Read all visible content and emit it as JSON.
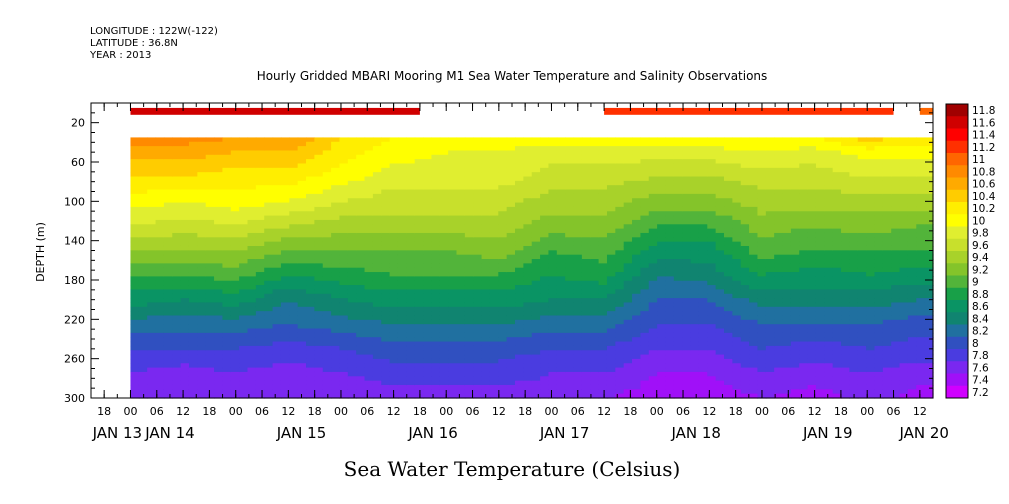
{
  "header": {
    "longitude_label": "LONGITUDE : 122W(-122)",
    "latitude_label": "LATITUDE : 36.8N",
    "year_label": "YEAR : 2013"
  },
  "chart_data": {
    "type": "heatmap",
    "title": "Hourly Gridded MBARI Mooring M1 Sea Water Temperature and Salinity Observations",
    "xlabel": "Sea Water Temperature (Celsius)",
    "ylabel": "DEPTH (m)",
    "x_unit": "hours since JAN 13 00:00 (2013)",
    "x_range_hours": [
      -9,
      183
    ],
    "y_range": [
      0,
      300
    ],
    "y_axis_inverted": true,
    "y_ticks": [
      20,
      60,
      100,
      140,
      180,
      220,
      260,
      300
    ],
    "x_hour_tick_labels": [
      "18",
      "00",
      "06",
      "12",
      "18",
      "00",
      "06",
      "12",
      "18",
      "00",
      "06",
      "12",
      "18",
      "00",
      "06",
      "12",
      "18",
      "00",
      "06",
      "12",
      "18",
      "00",
      "06",
      "12",
      "18",
      "00",
      "06",
      "12",
      "18",
      "00",
      "06",
      "12"
    ],
    "x_hour_tick_hours": [
      -6,
      0,
      6,
      12,
      18,
      24,
      30,
      36,
      42,
      48,
      54,
      60,
      66,
      72,
      78,
      84,
      90,
      96,
      102,
      108,
      114,
      120,
      126,
      132,
      138,
      144,
      150,
      156,
      162,
      168,
      174,
      180
    ],
    "x_day_labels": [
      {
        "label": "JAN 13",
        "hour": -3
      },
      {
        "label": "JAN 14",
        "hour": 9
      },
      {
        "label": "JAN 15",
        "hour": 39
      },
      {
        "label": "JAN 16",
        "hour": 69
      },
      {
        "label": "JAN 17",
        "hour": 99
      },
      {
        "label": "JAN 18",
        "hour": 129
      },
      {
        "label": "JAN 19",
        "hour": 159
      },
      {
        "label": "JAN 20",
        "hour": 181
      }
    ],
    "colorbar_levels": [
      "11.8",
      "11.6",
      "11.4",
      "11.2",
      "11",
      "10.8",
      "10.6",
      "10.4",
      "10.2",
      "10",
      "9.8",
      "9.6",
      "9.4",
      "9.2",
      "9",
      "8.8",
      "8.6",
      "8.4",
      "8.2",
      "8",
      "7.8",
      "7.6",
      "7.4",
      "7.2"
    ],
    "colorbar_colors": [
      "#a00000",
      "#d00000",
      "#ff0000",
      "#ff3000",
      "#ff6600",
      "#ff8a00",
      "#ffaa00",
      "#ffcc00",
      "#ffee00",
      "#ffff00",
      "#e0ee30",
      "#c8e02c",
      "#a8d22a",
      "#84c42a",
      "#52b43a",
      "#18a048",
      "#0a9464",
      "#108470",
      "#2070a0",
      "#3050c0",
      "#4a3ce0",
      "#7a28f0",
      "#a010f8",
      "#d000ff"
    ],
    "surface_series": {
      "depth_range_m": [
        5,
        12
      ],
      "segments": [
        {
          "start_hour": 0,
          "end_hour": 66,
          "temperature_C": 11.5
        },
        {
          "start_hour": 108,
          "end_hour": 174,
          "temperature_C": 11.2
        },
        {
          "start_hour": 180,
          "end_hour": 183,
          "temperature_C": 10.9
        }
      ]
    },
    "profile_depth_range_m": [
      35,
      300
    ],
    "hours": [
      0,
      12,
      24,
      36,
      48,
      60,
      72,
      84,
      96,
      108,
      120,
      132,
      144,
      156,
      168,
      180
    ],
    "depths_m": [
      35,
      50,
      75,
      100,
      125,
      150,
      175,
      200,
      225,
      250,
      275,
      300
    ],
    "temperature_C": [
      [
        10.8,
        10.6,
        10.3,
        10.0,
        9.7,
        9.3,
        8.9,
        8.6,
        8.2,
        7.9,
        7.7,
        7.5
      ],
      [
        10.8,
        10.6,
        10.3,
        9.9,
        9.6,
        9.3,
        8.9,
        8.5,
        8.2,
        7.9,
        7.6,
        7.5
      ],
      [
        10.7,
        10.5,
        10.2,
        10.0,
        9.7,
        9.3,
        9.0,
        8.6,
        8.2,
        7.9,
        7.7,
        7.5
      ],
      [
        10.7,
        10.5,
        10.2,
        9.9,
        9.5,
        9.1,
        8.7,
        8.3,
        8.1,
        7.8,
        7.6,
        7.5
      ],
      [
        10.3,
        10.2,
        10.0,
        9.7,
        9.4,
        9.1,
        8.8,
        8.5,
        8.2,
        7.9,
        7.7,
        7.5
      ],
      [
        10.1,
        10.0,
        9.8,
        9.6,
        9.4,
        9.1,
        8.9,
        8.6,
        8.3,
        8.0,
        7.8,
        7.6
      ],
      [
        10.0,
        9.9,
        9.8,
        9.6,
        9.4,
        9.1,
        8.9,
        8.6,
        8.3,
        8.0,
        7.8,
        7.6
      ],
      [
        10.0,
        9.9,
        9.8,
        9.6,
        9.4,
        9.2,
        8.9,
        8.6,
        8.3,
        8.0,
        7.8,
        7.6
      ],
      [
        10.0,
        9.8,
        9.6,
        9.4,
        9.2,
        8.9,
        8.7,
        8.5,
        8.2,
        7.9,
        7.7,
        7.6
      ],
      [
        10.0,
        9.8,
        9.6,
        9.4,
        9.2,
        9.0,
        8.8,
        8.5,
        8.2,
        7.9,
        7.7,
        7.5
      ],
      [
        10.0,
        9.8,
        9.5,
        9.2,
        8.9,
        8.6,
        8.3,
        8.1,
        7.9,
        7.7,
        7.5,
        7.4
      ],
      [
        10.1,
        9.8,
        9.5,
        9.2,
        8.9,
        8.6,
        8.4,
        8.1,
        7.9,
        7.7,
        7.5,
        7.4
      ],
      [
        10.1,
        9.9,
        9.6,
        9.4,
        9.2,
        9.0,
        8.7,
        8.4,
        8.1,
        7.9,
        7.7,
        7.5
      ],
      [
        10.1,
        9.8,
        9.6,
        9.4,
        9.1,
        8.9,
        8.6,
        8.4,
        8.1,
        7.8,
        7.6,
        7.4
      ],
      [
        10.4,
        10.0,
        9.7,
        9.4,
        9.2,
        8.9,
        8.7,
        8.4,
        8.1,
        7.9,
        7.7,
        7.6
      ],
      [
        10.2,
        10.0,
        9.7,
        9.4,
        9.1,
        8.9,
        8.6,
        8.3,
        8.0,
        7.8,
        7.6,
        7.4
      ]
    ]
  }
}
